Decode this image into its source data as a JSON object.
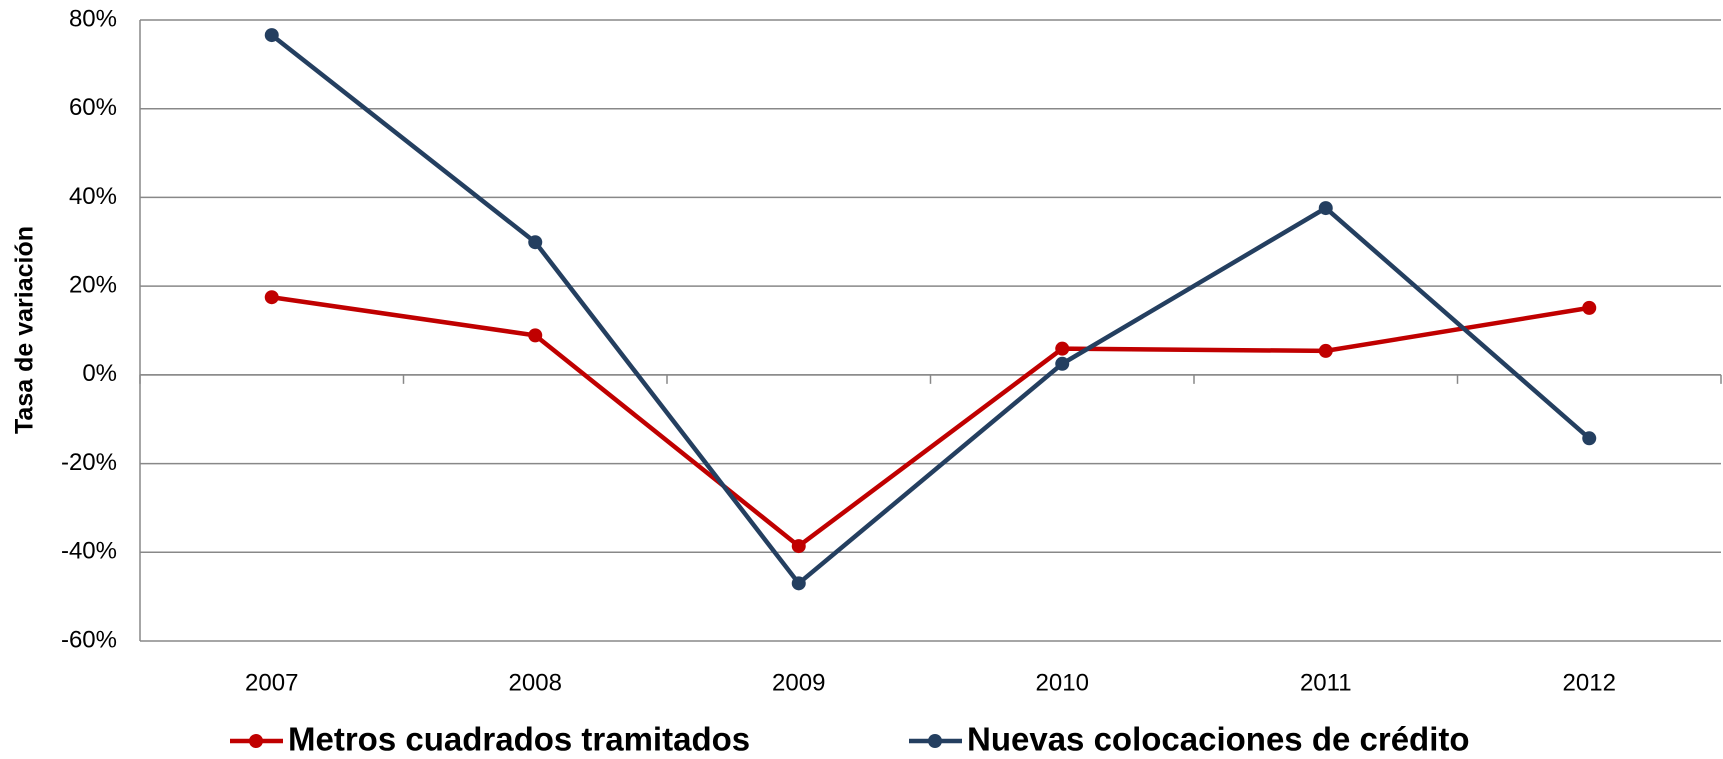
{
  "chart_data": {
    "type": "line",
    "y_label": "Tasa de variación",
    "categories": [
      "2007",
      "2008",
      "2009",
      "2010",
      "2011",
      "2012"
    ],
    "series": [
      {
        "name": "Metros cuadrados tramitados",
        "color": "#c00000",
        "values": [
          17.5,
          8.9,
          -38.6,
          5.9,
          5.4,
          15.1
        ]
      },
      {
        "name": "Nuevas colocaciones de crédito",
        "color": "#243f60",
        "values": [
          76.6,
          29.9,
          -47,
          2.5,
          37.6,
          -14.3
        ]
      }
    ],
    "ylim": [
      -60,
      80
    ],
    "yticks": [
      {
        "value": -60,
        "label": "-60%"
      },
      {
        "value": -40,
        "label": "-40%"
      },
      {
        "value": -20,
        "label": "-20%"
      },
      {
        "value": 0,
        "label": "0%"
      },
      {
        "value": 20,
        "label": "20%"
      },
      {
        "value": 40,
        "label": "40%"
      },
      {
        "value": 60,
        "label": "60%"
      },
      {
        "value": 80,
        "label": "80%"
      }
    ],
    "grid": true
  }
}
